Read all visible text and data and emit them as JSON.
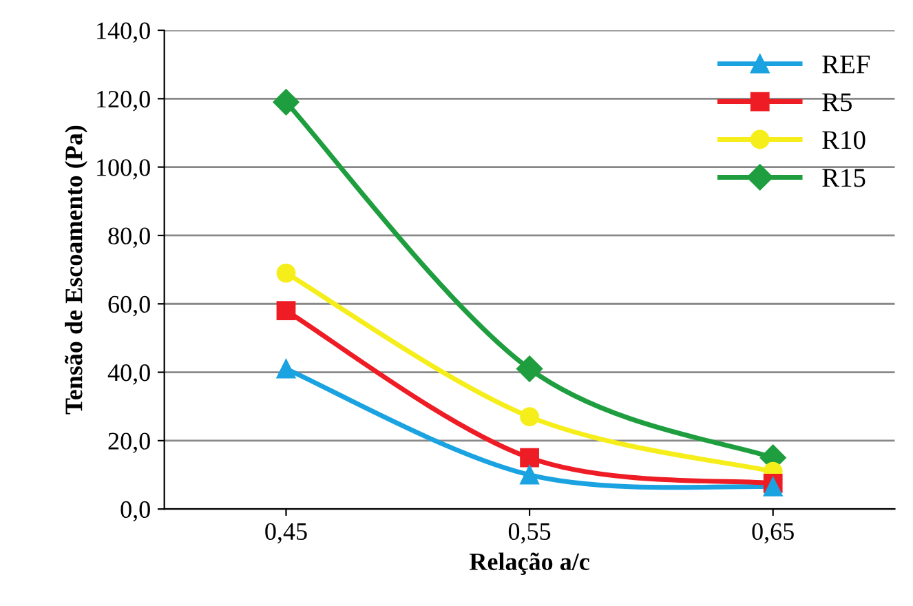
{
  "chart_data": {
    "type": "line",
    "xlabel": "Relação a/c",
    "ylabel": "Tensão de Escoamento (Pa)",
    "categories": [
      "0,45",
      "0,55",
      "0,65"
    ],
    "series": [
      {
        "name": "REF",
        "color": "#1aa3e0",
        "marker": "triangle",
        "values": [
          41,
          10,
          6.5
        ]
      },
      {
        "name": "R5",
        "color": "#ee1c24",
        "marker": "square",
        "values": [
          58,
          15,
          7.5
        ]
      },
      {
        "name": "R10",
        "color": "#f5ee1a",
        "marker": "circle",
        "values": [
          69,
          27,
          11
        ]
      },
      {
        "name": "R15",
        "color": "#1e9e3e",
        "marker": "diamond",
        "values": [
          119,
          41,
          15
        ]
      }
    ],
    "ylim": [
      0,
      140
    ],
    "yticks": [
      {
        "value": 0,
        "label": "0,0"
      },
      {
        "value": 20,
        "label": "20,0"
      },
      {
        "value": 40,
        "label": "40,0"
      },
      {
        "value": 60,
        "label": "60,0"
      },
      {
        "value": 80,
        "label": "80,0"
      },
      {
        "value": 100,
        "label": "100,0"
      },
      {
        "value": 120,
        "label": "120,0"
      },
      {
        "value": 140,
        "label": "140,0"
      }
    ],
    "grid": "y",
    "legend": "top right",
    "line_style": "solid"
  }
}
